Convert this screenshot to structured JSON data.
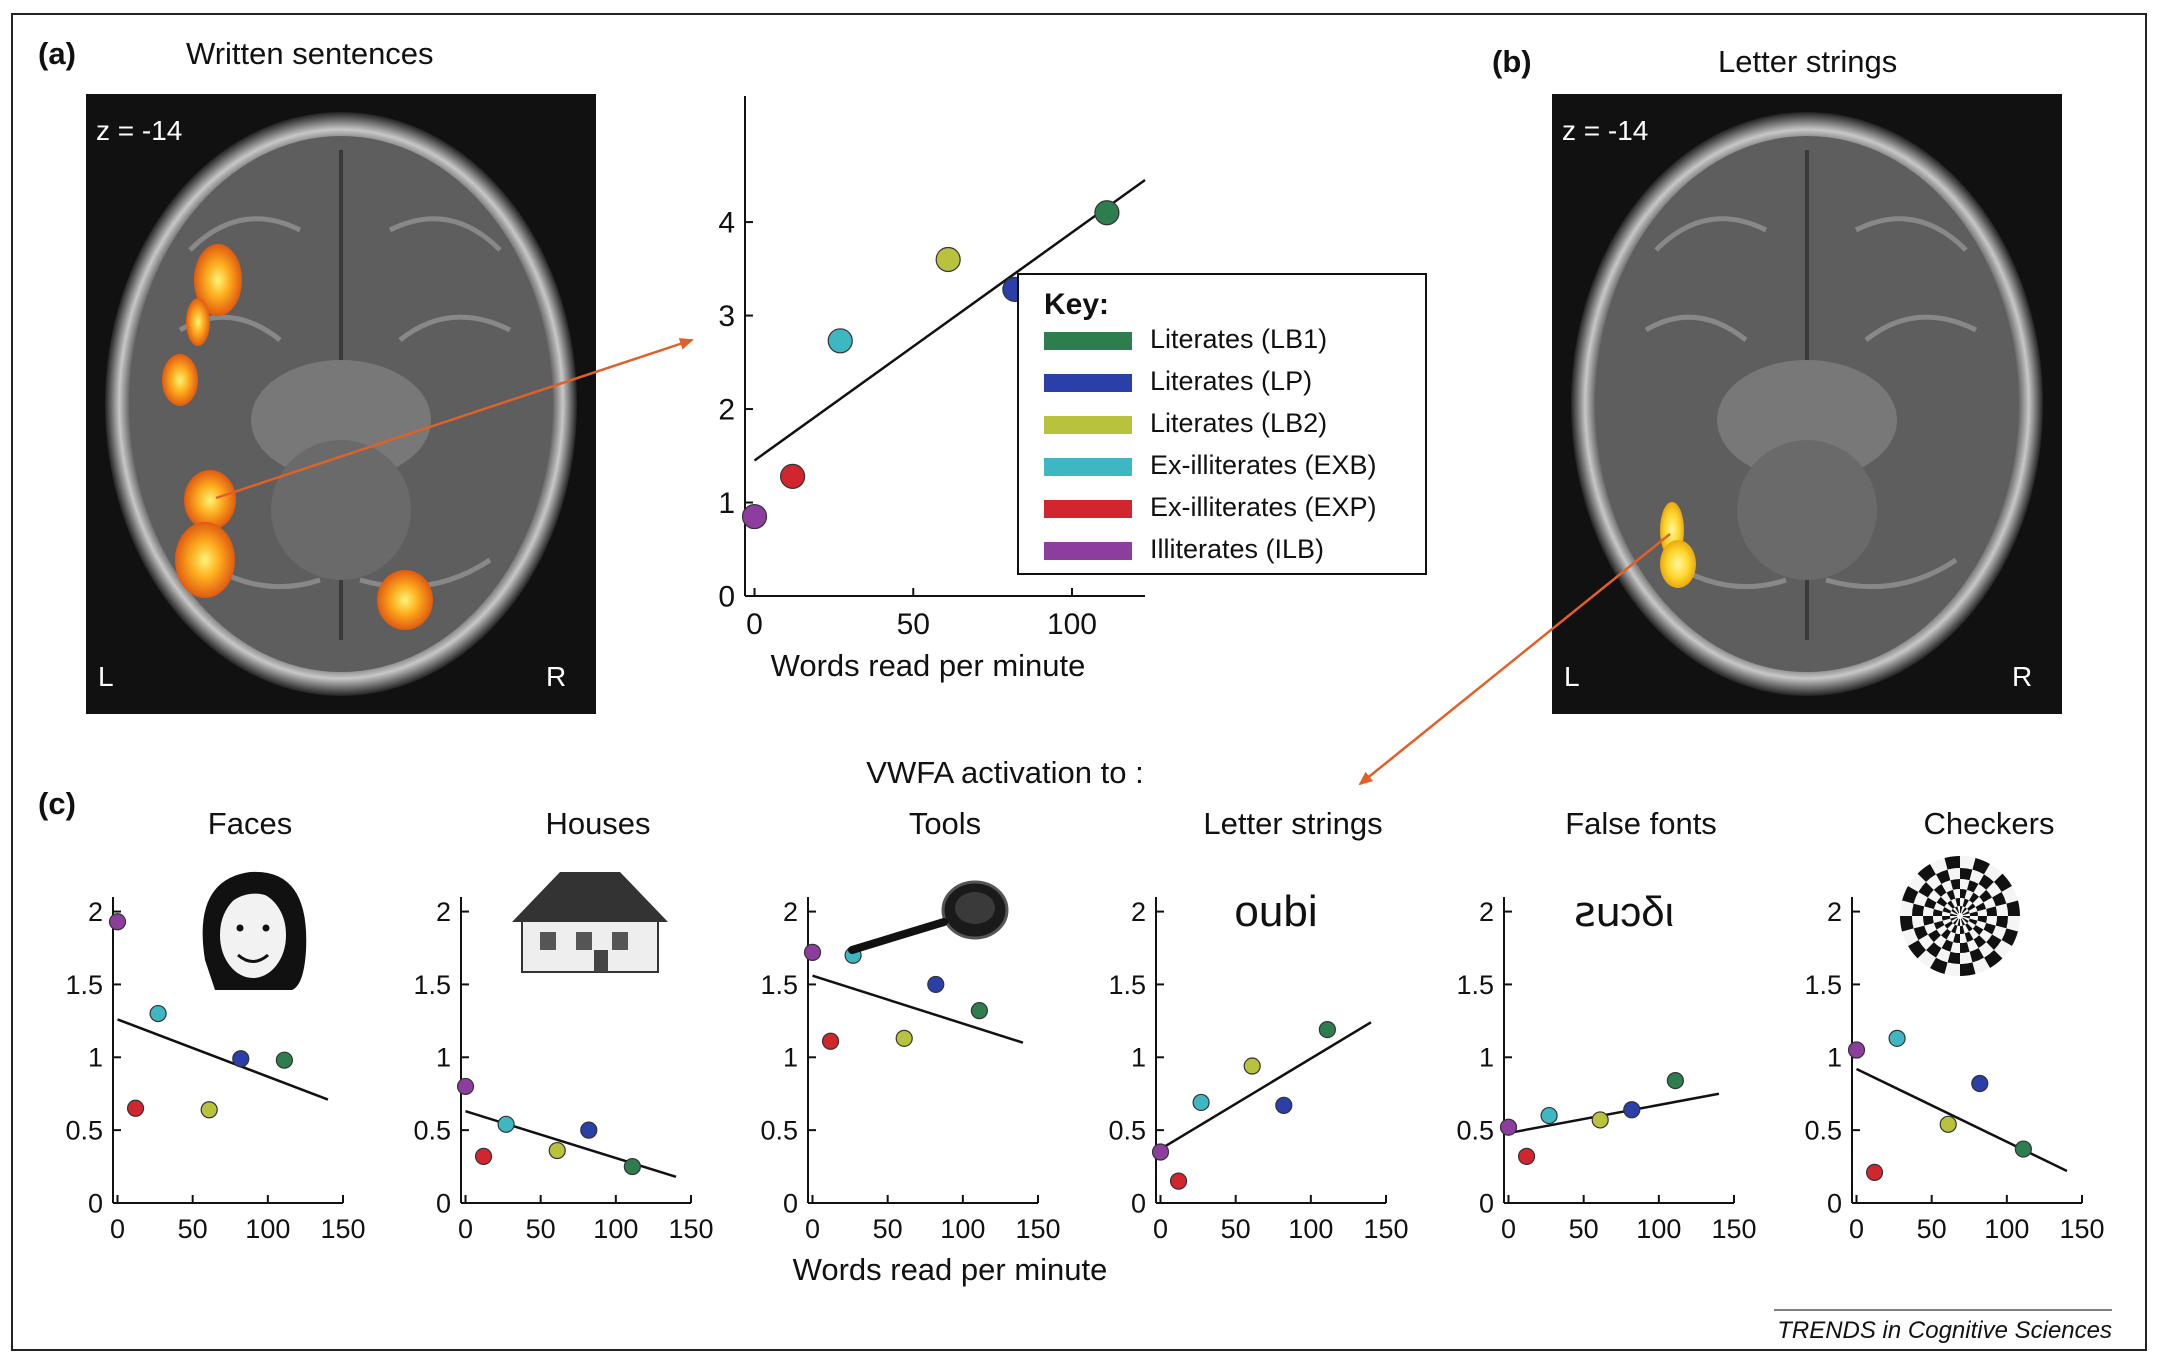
{
  "labels": {
    "panel_a": "(a)",
    "panel_b": "(b)",
    "panel_c": "(c)",
    "title_a": "Written sentences",
    "title_b": "Letter strings",
    "z_a": "z = -14",
    "z_b": "z = -14",
    "left": "L",
    "right": "R",
    "vwfa_title": "VWFA activation to :",
    "xlabel_bottom": "Words read per minute",
    "credit": "TRENDS in Cognitive Sciences",
    "stimulus_oubi": "oubi",
    "stimulus_false_font": "ꙅ𐌵ɔδι"
  },
  "colors": {
    "lb1": "#2e7d4f",
    "lp": "#2a3fa8",
    "lb2": "#b8c23c",
    "exb": "#3fb7c2",
    "exp": "#d2262f",
    "ilb": "#8c3d9e",
    "arrow": "#e0602a",
    "fit": "#111111"
  },
  "chart_data": [
    {
      "type": "scatter",
      "id": "main",
      "xlabel": "Words read per minute",
      "ylabel": "",
      "xlim": [
        -3,
        123
      ],
      "ylim": [
        0,
        4.6
      ],
      "xticks": [
        0,
        50,
        100
      ],
      "yticks": [
        0,
        1,
        2,
        3,
        4
      ],
      "legend": {
        "title": "Key:",
        "placement": "right",
        "entries": [
          {
            "label": "Literates (LB1)",
            "color": "#2e7d4f"
          },
          {
            "label": "Literates (LP)",
            "color": "#2a3fa8"
          },
          {
            "label": "Literates (LB2)",
            "color": "#b8c23c"
          },
          {
            "label": "Ex-illiterates (EXB)",
            "color": "#3fb7c2"
          },
          {
            "label": "Ex-illiterates (EXP)",
            "color": "#d2262f"
          },
          {
            "label": "Illiterates (ILB)",
            "color": "#8c3d9e"
          }
        ]
      },
      "points": [
        {
          "group": "LB1",
          "x": 111,
          "y": 4.1
        },
        {
          "group": "LP",
          "x": 82,
          "y": 3.28
        },
        {
          "group": "LB2",
          "x": 61,
          "y": 3.6
        },
        {
          "group": "EXB",
          "x": 27,
          "y": 2.73
        },
        {
          "group": "EXP",
          "x": 12,
          "y": 1.28
        },
        {
          "group": "ILB",
          "x": 0,
          "y": 0.85
        }
      ],
      "fit": {
        "x": [
          0,
          123
        ],
        "y": [
          1.45,
          4.45
        ]
      }
    },
    {
      "type": "scatter",
      "id": "faces",
      "title": "Faces",
      "xlim": [
        -3,
        150
      ],
      "ylim": [
        0,
        2.1
      ],
      "xticks": [
        0,
        50,
        100,
        150
      ],
      "yticks": [
        0,
        0.5,
        1,
        1.5,
        2
      ],
      "points": [
        {
          "group": "ILB",
          "x": 0,
          "y": 1.93
        },
        {
          "group": "EXB",
          "x": 27,
          "y": 1.3
        },
        {
          "group": "EXP",
          "x": 12,
          "y": 0.65
        },
        {
          "group": "LB2",
          "x": 61,
          "y": 0.64
        },
        {
          "group": "LP",
          "x": 82,
          "y": 0.99
        },
        {
          "group": "LB1",
          "x": 111,
          "y": 0.98
        }
      ],
      "fit": {
        "x": [
          0,
          140
        ],
        "y": [
          1.26,
          0.71
        ]
      }
    },
    {
      "type": "scatter",
      "id": "houses",
      "title": "Houses",
      "xlim": [
        -3,
        150
      ],
      "ylim": [
        0,
        2.1
      ],
      "xticks": [
        0,
        50,
        100,
        150
      ],
      "yticks": [
        0,
        0.5,
        1,
        1.5,
        2
      ],
      "points": [
        {
          "group": "ILB",
          "x": 0,
          "y": 0.8
        },
        {
          "group": "EXB",
          "x": 27,
          "y": 0.54
        },
        {
          "group": "EXP",
          "x": 12,
          "y": 0.32
        },
        {
          "group": "LB2",
          "x": 61,
          "y": 0.36
        },
        {
          "group": "LP",
          "x": 82,
          "y": 0.5
        },
        {
          "group": "LB1",
          "x": 111,
          "y": 0.25
        }
      ],
      "fit": {
        "x": [
          0,
          140
        ],
        "y": [
          0.63,
          0.18
        ]
      }
    },
    {
      "type": "scatter",
      "id": "tools",
      "title": "Tools",
      "xlim": [
        -3,
        150
      ],
      "ylim": [
        0,
        2.1
      ],
      "xticks": [
        0,
        50,
        100,
        150
      ],
      "yticks": [
        0,
        0.5,
        1,
        1.5,
        2
      ],
      "points": [
        {
          "group": "ILB",
          "x": 0,
          "y": 1.72
        },
        {
          "group": "EXB",
          "x": 27,
          "y": 1.7
        },
        {
          "group": "EXP",
          "x": 12,
          "y": 1.11
        },
        {
          "group": "LB2",
          "x": 61,
          "y": 1.13
        },
        {
          "group": "LP",
          "x": 82,
          "y": 1.5
        },
        {
          "group": "LB1",
          "x": 111,
          "y": 1.32
        }
      ],
      "fit": {
        "x": [
          0,
          140
        ],
        "y": [
          1.56,
          1.1
        ]
      }
    },
    {
      "type": "scatter",
      "id": "letters",
      "title": "Letter strings",
      "xlim": [
        -3,
        150
      ],
      "ylim": [
        0,
        2.1
      ],
      "xticks": [
        0,
        50,
        100,
        150
      ],
      "yticks": [
        0,
        0.5,
        1,
        1.5,
        2
      ],
      "points": [
        {
          "group": "ILB",
          "x": 0,
          "y": 0.35
        },
        {
          "group": "EXB",
          "x": 27,
          "y": 0.69
        },
        {
          "group": "EXP",
          "x": 12,
          "y": 0.15
        },
        {
          "group": "LB2",
          "x": 61,
          "y": 0.94
        },
        {
          "group": "LP",
          "x": 82,
          "y": 0.67
        },
        {
          "group": "LB1",
          "x": 111,
          "y": 1.19
        }
      ],
      "fit": {
        "x": [
          0,
          140
        ],
        "y": [
          0.37,
          1.24
        ]
      }
    },
    {
      "type": "scatter",
      "id": "falsefonts",
      "title": "False fonts",
      "xlim": [
        -3,
        150
      ],
      "ylim": [
        0,
        2.1
      ],
      "xticks": [
        0,
        50,
        100,
        150
      ],
      "yticks": [
        0,
        0.5,
        1,
        1.5,
        2
      ],
      "points": [
        {
          "group": "ILB",
          "x": 0,
          "y": 0.52
        },
        {
          "group": "EXB",
          "x": 27,
          "y": 0.6
        },
        {
          "group": "EXP",
          "x": 12,
          "y": 0.32
        },
        {
          "group": "LB2",
          "x": 61,
          "y": 0.57
        },
        {
          "group": "LP",
          "x": 82,
          "y": 0.64
        },
        {
          "group": "LB1",
          "x": 111,
          "y": 0.84
        }
      ],
      "fit": {
        "x": [
          0,
          140
        ],
        "y": [
          0.48,
          0.75
        ]
      }
    },
    {
      "type": "scatter",
      "id": "checkers",
      "title": "Checkers",
      "xlim": [
        -3,
        150
      ],
      "ylim": [
        0,
        2.1
      ],
      "xticks": [
        0,
        50,
        100,
        150
      ],
      "yticks": [
        0,
        0.5,
        1,
        1.5,
        2
      ],
      "points": [
        {
          "group": "ILB",
          "x": 0,
          "y": 1.05
        },
        {
          "group": "EXB",
          "x": 27,
          "y": 1.13
        },
        {
          "group": "EXP",
          "x": 12,
          "y": 0.21
        },
        {
          "group": "LB2",
          "x": 61,
          "y": 0.54
        },
        {
          "group": "LP",
          "x": 82,
          "y": 0.82
        },
        {
          "group": "LB1",
          "x": 111,
          "y": 0.37
        }
      ],
      "fit": {
        "x": [
          0,
          140
        ],
        "y": [
          0.92,
          0.22
        ]
      }
    }
  ]
}
